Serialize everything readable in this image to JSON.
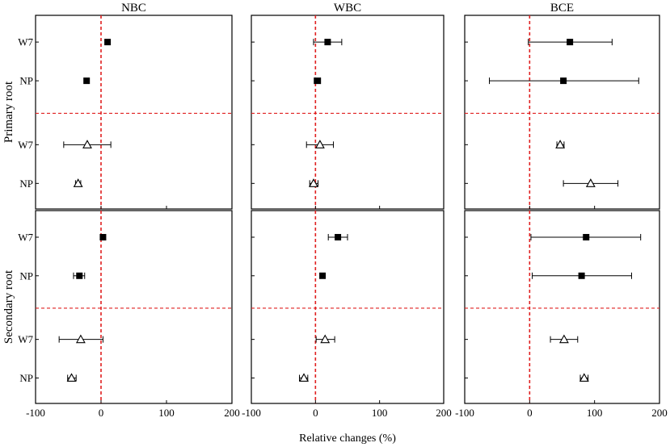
{
  "chart_data": {
    "type": "scatter",
    "subtype": "forest-plot-with-error-bars",
    "columns": [
      "NBC",
      "WBC",
      "BCE"
    ],
    "rows": [
      "Primary root",
      "Secondary root"
    ],
    "categories": [
      "W7",
      "NP",
      "W7",
      "NP"
    ],
    "groups": [
      {
        "marker": "filled-square",
        "categories": [
          "W7",
          "NP"
        ]
      },
      {
        "marker": "open-triangle",
        "categories": [
          "W7",
          "NP"
        ]
      }
    ],
    "xlabel": "Relative changes (%)",
    "xlim": [
      -100,
      200
    ],
    "xticks": [
      -100,
      0,
      100,
      200
    ],
    "reference_line": {
      "x": 0,
      "color": "#e02020",
      "style": "dashed"
    },
    "group_divider": {
      "color": "#e02020",
      "style": "dashed"
    },
    "panels": [
      {
        "row": "Primary root",
        "column": "NBC",
        "points": [
          {
            "category": "W7",
            "marker": "filled-square",
            "value": 10,
            "ci": [
              10,
              10
            ]
          },
          {
            "category": "NP",
            "marker": "filled-square",
            "value": -22,
            "ci": [
              -22,
              -22
            ]
          },
          {
            "category": "W7",
            "marker": "open-triangle",
            "value": -21,
            "ci": [
              -57,
              15
            ]
          },
          {
            "category": "NP",
            "marker": "open-triangle",
            "value": -35,
            "ci": [
              -39,
              -31
            ]
          }
        ]
      },
      {
        "row": "Primary root",
        "column": "WBC",
        "points": [
          {
            "category": "W7",
            "marker": "filled-square",
            "value": 19,
            "ci": [
              -3,
              41
            ]
          },
          {
            "category": "NP",
            "marker": "filled-square",
            "value": 3,
            "ci": [
              -2,
              8
            ]
          },
          {
            "category": "W7",
            "marker": "open-triangle",
            "value": 7,
            "ci": [
              -14,
              28
            ]
          },
          {
            "category": "NP",
            "marker": "open-triangle",
            "value": -3,
            "ci": [
              -9,
              4
            ]
          }
        ]
      },
      {
        "row": "Primary root",
        "column": "BCE",
        "points": [
          {
            "category": "W7",
            "marker": "filled-square",
            "value": 62,
            "ci": [
              -2,
              127
            ]
          },
          {
            "category": "NP",
            "marker": "filled-square",
            "value": 52,
            "ci": [
              -62,
              168
            ]
          },
          {
            "category": "W7",
            "marker": "open-triangle",
            "value": 47,
            "ci": [
              42,
              53
            ]
          },
          {
            "category": "NP",
            "marker": "open-triangle",
            "value": 94,
            "ci": [
              52,
              136
            ]
          }
        ]
      },
      {
        "row": "Secondary root",
        "column": "NBC",
        "points": [
          {
            "category": "W7",
            "marker": "filled-square",
            "value": 3,
            "ci": [
              3,
              3
            ]
          },
          {
            "category": "NP",
            "marker": "filled-square",
            "value": -33,
            "ci": [
              -42,
              -25
            ]
          },
          {
            "category": "W7",
            "marker": "open-triangle",
            "value": -31,
            "ci": [
              -64,
              3
            ]
          },
          {
            "category": "NP",
            "marker": "open-triangle",
            "value": -45,
            "ci": [
              -51,
              -38
            ]
          }
        ]
      },
      {
        "row": "Secondary root",
        "column": "WBC",
        "points": [
          {
            "category": "W7",
            "marker": "filled-square",
            "value": 35,
            "ci": [
              20,
              50
            ]
          },
          {
            "category": "NP",
            "marker": "filled-square",
            "value": 11,
            "ci": [
              11,
              11
            ]
          },
          {
            "category": "W7",
            "marker": "open-triangle",
            "value": 15,
            "ci": [
              1,
              30
            ]
          },
          {
            "category": "NP",
            "marker": "open-triangle",
            "value": -18,
            "ci": [
              -25,
              -12
            ]
          }
        ]
      },
      {
        "row": "Secondary root",
        "column": "BCE",
        "points": [
          {
            "category": "W7",
            "marker": "filled-square",
            "value": 87,
            "ci": [
              2,
              171
            ]
          },
          {
            "category": "NP",
            "marker": "filled-square",
            "value": 80,
            "ci": [
              4,
              157
            ]
          },
          {
            "category": "W7",
            "marker": "open-triangle",
            "value": 53,
            "ci": [
              32,
              74
            ]
          },
          {
            "category": "NP",
            "marker": "open-triangle",
            "value": 84,
            "ci": [
              78,
              90
            ]
          }
        ]
      }
    ]
  }
}
